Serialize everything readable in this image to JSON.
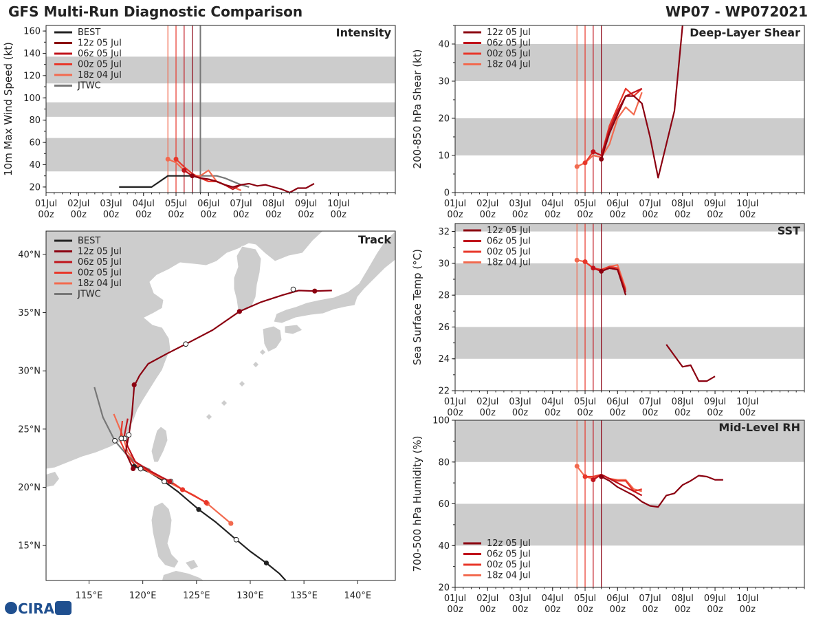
{
  "header": {
    "title": "GFS Multi-Run Diagnostic Comparison",
    "storm_id": "WP07 - WP072021"
  },
  "logo_text": "CIRA",
  "colors": {
    "best": "#222222",
    "jtwc": "#777777",
    "band": "#cccccc",
    "r12z05": "#8b0010",
    "r06z05": "#c0141c",
    "r00z05": "#e8372a",
    "r18z04": "#f26a4f"
  },
  "legend": {
    "best": "BEST",
    "jtwc": "JTWC",
    "runs": [
      {
        "id": "r12z05",
        "label": "12z 05 Jul"
      },
      {
        "id": "r06z05",
        "label": "06z 05 Jul"
      },
      {
        "id": "r00z05",
        "label": "00z 05 Jul"
      },
      {
        "id": "r18z04",
        "label": "18z 04 Jul"
      }
    ]
  },
  "chart_data": [
    {
      "id": "intensity",
      "type": "line",
      "title": "Intensity",
      "ylabel": "10m Max Wind Speed (kt)",
      "xlim": [
        0,
        10.75
      ],
      "ylim": [
        15,
        165
      ],
      "yticks": [
        20,
        40,
        60,
        80,
        100,
        120,
        140,
        160
      ],
      "xtick_days": [
        "01Jul",
        "02Jul",
        "03Jul",
        "04Jul",
        "05Jul",
        "06Jul",
        "07Jul",
        "08Jul",
        "09Jul",
        "10Jul"
      ],
      "xtick_hour": "00z",
      "bands": [
        [
          34,
          64
        ],
        [
          83,
          96
        ],
        [
          113,
          137
        ]
      ],
      "vlines": [
        {
          "x": 3.75,
          "run": "r18z04"
        },
        {
          "x": 4.0,
          "run": "r00z05"
        },
        {
          "x": 4.25,
          "run": "r06z05"
        },
        {
          "x": 4.5,
          "run": "r12z05"
        },
        {
          "x": 4.75,
          "run": "jtwc"
        }
      ],
      "series": [
        {
          "id": "best",
          "x": [
            2.25,
            2.5,
            2.75,
            3.0,
            3.25,
            3.5,
            3.75,
            4.0,
            4.25,
            4.5
          ],
          "y": [
            20,
            20,
            20,
            20,
            20,
            25,
            30,
            30,
            30,
            30
          ]
        },
        {
          "id": "jtwc",
          "x": [
            4.5,
            4.75,
            5.0,
            5.25,
            5.5,
            5.75,
            6.0,
            6.25
          ],
          "y": [
            30,
            30,
            30,
            30,
            28,
            25,
            22,
            20
          ]
        },
        {
          "id": "r18z04",
          "x": [
            3.75,
            4.0,
            4.25,
            4.5,
            4.75,
            5.0,
            5.25,
            5.5,
            5.75,
            6.0
          ],
          "y": [
            45,
            42,
            35,
            30,
            30,
            35,
            25,
            22,
            20,
            17
          ]
        },
        {
          "id": "r00z05",
          "x": [
            4.0,
            4.25,
            4.5,
            4.75,
            5.0,
            5.25,
            5.5,
            5.75
          ],
          "y": [
            45,
            38,
            32,
            28,
            25,
            25,
            22,
            18
          ]
        },
        {
          "id": "r06z05",
          "x": [
            4.25,
            4.5,
            4.75,
            5.0,
            5.25,
            5.5,
            5.75,
            6.0
          ],
          "y": [
            35,
            30,
            28,
            27,
            25,
            22,
            18,
            22
          ]
        },
        {
          "id": "r12z05",
          "x": [
            4.5,
            4.75,
            5.0,
            5.25,
            5.5,
            5.75,
            6.0,
            6.25,
            6.5,
            6.75,
            7.0,
            7.25,
            7.5,
            7.75,
            8.0,
            8.25
          ],
          "y": [
            30,
            28,
            27,
            25,
            22,
            20,
            22,
            23,
            21,
            22,
            20,
            18,
            15,
            19,
            19,
            23
          ]
        }
      ]
    },
    {
      "id": "shear",
      "type": "line",
      "title": "Deep-Layer Shear",
      "ylabel": "200-850 hPa Shear (kt)",
      "xlim": [
        0,
        10.75
      ],
      "ylim": [
        0,
        45
      ],
      "yticks": [
        0,
        10,
        20,
        30,
        40
      ],
      "bands": [
        [
          10,
          20
        ],
        [
          30,
          40
        ]
      ],
      "vlines": [
        {
          "x": 3.75,
          "run": "r18z04"
        },
        {
          "x": 4.0,
          "run": "r00z05"
        },
        {
          "x": 4.25,
          "run": "r06z05"
        },
        {
          "x": 4.5,
          "run": "r12z05"
        }
      ],
      "series": [
        {
          "id": "r18z04",
          "x": [
            3.75,
            4.0,
            4.25,
            4.5,
            4.75,
            5.0,
            5.25,
            5.5,
            5.75
          ],
          "y": [
            7,
            8,
            10,
            9.5,
            13,
            20,
            23,
            21,
            27
          ]
        },
        {
          "id": "r00z05",
          "x": [
            4.0,
            4.25,
            4.5,
            4.75,
            5.0,
            5.25,
            5.5,
            5.75
          ],
          "y": [
            8,
            11,
            10,
            18,
            23,
            28,
            26,
            28
          ]
        },
        {
          "id": "r06z05",
          "x": [
            4.25,
            4.5,
            4.75,
            5.0,
            5.25,
            5.5,
            5.75
          ],
          "y": [
            11,
            10,
            17,
            22,
            26,
            27,
            28
          ]
        },
        {
          "id": "r12z05",
          "x": [
            4.5,
            4.75,
            5.0,
            5.25,
            5.5,
            5.75,
            6.0,
            6.25,
            6.5,
            6.75,
            7.0
          ],
          "y": [
            9,
            16,
            21,
            26,
            26,
            24,
            15,
            4,
            13,
            22,
            45
          ]
        }
      ],
      "markers": [
        {
          "run": "r18z04",
          "x": 3.75,
          "y": 7
        },
        {
          "run": "r00z05",
          "x": 4.0,
          "y": 8
        },
        {
          "run": "r06z05",
          "x": 4.25,
          "y": 11
        },
        {
          "run": "r12z05",
          "x": 4.5,
          "y": 9
        }
      ]
    },
    {
      "id": "sst",
      "type": "line",
      "title": "SST",
      "ylabel": "Sea Surface Temp (°C)",
      "xlim": [
        0,
        10.75
      ],
      "ylim": [
        22,
        32.5
      ],
      "yticks": [
        22,
        24,
        26,
        28,
        30,
        32
      ],
      "bands": [
        [
          24,
          26
        ],
        [
          28,
          30
        ],
        [
          32,
          32.5
        ]
      ],
      "vlines": [
        {
          "x": 3.75,
          "run": "r18z04"
        },
        {
          "x": 4.0,
          "run": "r00z05"
        },
        {
          "x": 4.25,
          "run": "r06z05"
        },
        {
          "x": 4.5,
          "run": "r12z05"
        }
      ],
      "series": [
        {
          "id": "r18z04",
          "x": [
            3.75,
            4.0,
            4.25,
            4.5,
            4.75,
            5.0,
            5.25
          ],
          "y": [
            30.2,
            30.1,
            29.7,
            29.6,
            29.8,
            29.9,
            28.4
          ]
        },
        {
          "id": "r00z05",
          "x": [
            4.0,
            4.25,
            4.5,
            4.75,
            5.0,
            5.25
          ],
          "y": [
            30.1,
            29.7,
            29.6,
            29.8,
            29.7,
            28.3
          ]
        },
        {
          "id": "r06z05",
          "x": [
            4.25,
            4.5,
            4.75,
            5.0,
            5.25
          ],
          "y": [
            29.7,
            29.5,
            29.7,
            29.6,
            28.2
          ]
        },
        {
          "id": "r12z05",
          "x": [
            4.5,
            4.75,
            5.0,
            5.25
          ],
          "y": [
            29.5,
            29.7,
            29.6,
            28.0
          ]
        },
        {
          "id": "r12z05",
          "x": [
            6.5,
            6.75,
            7.0,
            7.25,
            7.5,
            7.75,
            8.0
          ],
          "y": [
            24.9,
            24.2,
            23.5,
            23.6,
            22.6,
            22.6,
            22.9
          ]
        }
      ],
      "markers": [
        {
          "run": "r18z04",
          "x": 3.75,
          "y": 30.2
        },
        {
          "run": "r00z05",
          "x": 4.0,
          "y": 30.1
        },
        {
          "run": "r06z05",
          "x": 4.25,
          "y": 29.7
        },
        {
          "run": "r12z05",
          "x": 4.5,
          "y": 29.5
        }
      ]
    },
    {
      "id": "rh",
      "type": "line",
      "title": "Mid-Level RH",
      "ylabel": "700-500 hPa Humidity (%)",
      "xlim": [
        0,
        10.75
      ],
      "ylim": [
        20,
        100
      ],
      "yticks": [
        20,
        40,
        60,
        80,
        100
      ],
      "bands": [
        [
          40,
          60
        ],
        [
          80,
          100
        ]
      ],
      "vlines": [
        {
          "x": 3.75,
          "run": "r18z04"
        },
        {
          "x": 4.0,
          "run": "r00z05"
        },
        {
          "x": 4.25,
          "run": "r06z05"
        },
        {
          "x": 4.5,
          "run": "r12z05"
        }
      ],
      "series": [
        {
          "id": "r18z04",
          "x": [
            3.75,
            4.0,
            4.25,
            4.5,
            4.75,
            5.0,
            5.25,
            5.5,
            5.75
          ],
          "y": [
            78,
            73,
            72,
            74,
            72,
            71.5,
            71.5,
            67,
            66
          ]
        },
        {
          "id": "r00z05",
          "x": [
            4.0,
            4.25,
            4.5,
            4.75,
            5.0,
            5.25,
            5.5,
            5.75
          ],
          "y": [
            73,
            73,
            74,
            72,
            71,
            71,
            66,
            67
          ]
        },
        {
          "id": "r06z05",
          "x": [
            4.25,
            4.5,
            4.75,
            5.0,
            5.25,
            5.5,
            5.75
          ],
          "y": [
            71.5,
            74,
            72,
            70,
            68,
            66,
            64
          ]
        },
        {
          "id": "r12z05",
          "x": [
            4.5,
            4.75,
            5.0,
            5.25,
            5.5,
            5.75,
            6.0,
            6.25,
            6.5,
            6.75,
            7.0,
            7.25,
            7.5,
            7.75,
            8.0,
            8.25
          ],
          "y": [
            73,
            71,
            68,
            66,
            64,
            61,
            59,
            58.5,
            64,
            65,
            69,
            71,
            73.5,
            73,
            71.5,
            71.5
          ]
        }
      ],
      "markers": [
        {
          "run": "r18z04",
          "x": 3.75,
          "y": 78
        },
        {
          "run": "r00z05",
          "x": 4.0,
          "y": 73
        },
        {
          "run": "r06z05",
          "x": 4.25,
          "y": 71.5
        },
        {
          "run": "r12z05",
          "x": 4.5,
          "y": 73
        }
      ]
    },
    {
      "id": "track",
      "type": "scatter",
      "title": "Track",
      "xlim": [
        111,
        143.5
      ],
      "ylim": [
        12,
        42
      ],
      "xticks": [
        {
          "v": 115,
          "t": "115°E"
        },
        {
          "v": 120,
          "t": "120°E"
        },
        {
          "v": 125,
          "t": "125°E"
        },
        {
          "v": 130,
          "t": "130°E"
        },
        {
          "v": 135,
          "t": "135°E"
        },
        {
          "v": 140,
          "t": "140°E"
        }
      ],
      "yticks": [
        {
          "v": 15,
          "t": "15°N"
        },
        {
          "v": 20,
          "t": "20°N"
        },
        {
          "v": 25,
          "t": "25°N"
        },
        {
          "v": 30,
          "t": "30°N"
        },
        {
          "v": 35,
          "t": "35°N"
        },
        {
          "v": 40,
          "t": "40°N"
        }
      ],
      "series": [
        {
          "id": "best",
          "lon": [
            133.5,
            132.7,
            131.5,
            130,
            128.7,
            126.8,
            125.2,
            123.3,
            122,
            120.6,
            119.8,
            119.2
          ],
          "lat": [
            11.8,
            12.6,
            13.5,
            14.5,
            15.5,
            17.0,
            18.1,
            19.6,
            20.5,
            21.3,
            21.6,
            21.8
          ],
          "filled": [
            [
              131.5,
              13.5
            ],
            [
              125.2,
              18.1
            ],
            [
              119.2,
              21.8
            ]
          ],
          "open": [
            [
              128.7,
              15.5
            ],
            [
              122.0,
              20.5
            ],
            [
              119.8,
              21.6
            ]
          ]
        },
        {
          "id": "jtwc",
          "lon": [
            115.5,
            116.3,
            117.4,
            118.5,
            119.5,
            120.7
          ],
          "lat": [
            28.6,
            26.0,
            24.0,
            22.8,
            22.0,
            21.5
          ]
        },
        {
          "id": "r18z04",
          "lon": [
            128.2,
            126.0,
            124.8,
            123.5,
            122.3,
            120.6,
            119.5,
            118.6,
            118.1,
            117.3
          ],
          "lat": [
            16.9,
            18.6,
            19.3,
            19.9,
            20.5,
            21.3,
            22.0,
            23.0,
            24.5,
            26.3
          ],
          "filled": [
            [
              128.2,
              16.9
            ],
            [
              126.0,
              18.6
            ]
          ],
          "open": []
        },
        {
          "id": "r00z05",
          "lon": [
            125.9,
            123.7,
            122.6,
            120.3,
            119.3,
            118.5,
            117.9,
            118.1
          ],
          "lat": [
            18.7,
            19.8,
            20.5,
            21.5,
            21.9,
            22.8,
            24.0,
            25.7
          ],
          "filled": [
            [
              125.9,
              18.7
            ],
            [
              123.7,
              19.8
            ]
          ],
          "open": [
            [
              122.6,
              20.5
            ]
          ]
        },
        {
          "id": "r06z05",
          "lon": [
            122.5,
            120.5,
            119.3,
            118.6,
            118.3,
            118.6
          ],
          "lat": [
            20.5,
            21.5,
            22.2,
            23.5,
            24.5,
            25.9
          ],
          "filled": [
            [
              122.5,
              20.5
            ]
          ],
          "open": [
            [
              118.3,
              24.2
            ]
          ]
        },
        {
          "id": "r12z05",
          "lon": [
            119.1,
            118.4,
            118.7,
            119.0,
            119.2,
            119.7,
            120.5,
            122.3,
            124.0,
            126.5,
            129.0,
            131.0,
            133.0,
            134.5,
            136.0,
            137.6
          ],
          "lat": [
            21.6,
            23.0,
            24.5,
            26.3,
            28.7,
            29.6,
            30.6,
            31.5,
            32.3,
            33.5,
            35.1,
            35.9,
            36.5,
            36.9,
            36.85,
            36.9
          ],
          "filled": [
            [
              119.1,
              21.6
            ],
            [
              119.2,
              28.8
            ],
            [
              129.0,
              35.1
            ],
            [
              136.0,
              36.85
            ]
          ],
          "open": [
            [
              118.7,
              24.5
            ],
            [
              124.0,
              32.3
            ],
            [
              134.0,
              37.0
            ],
            [
              117.4,
              24.0
            ],
            [
              118.0,
              24.2
            ]
          ]
        }
      ]
    }
  ]
}
